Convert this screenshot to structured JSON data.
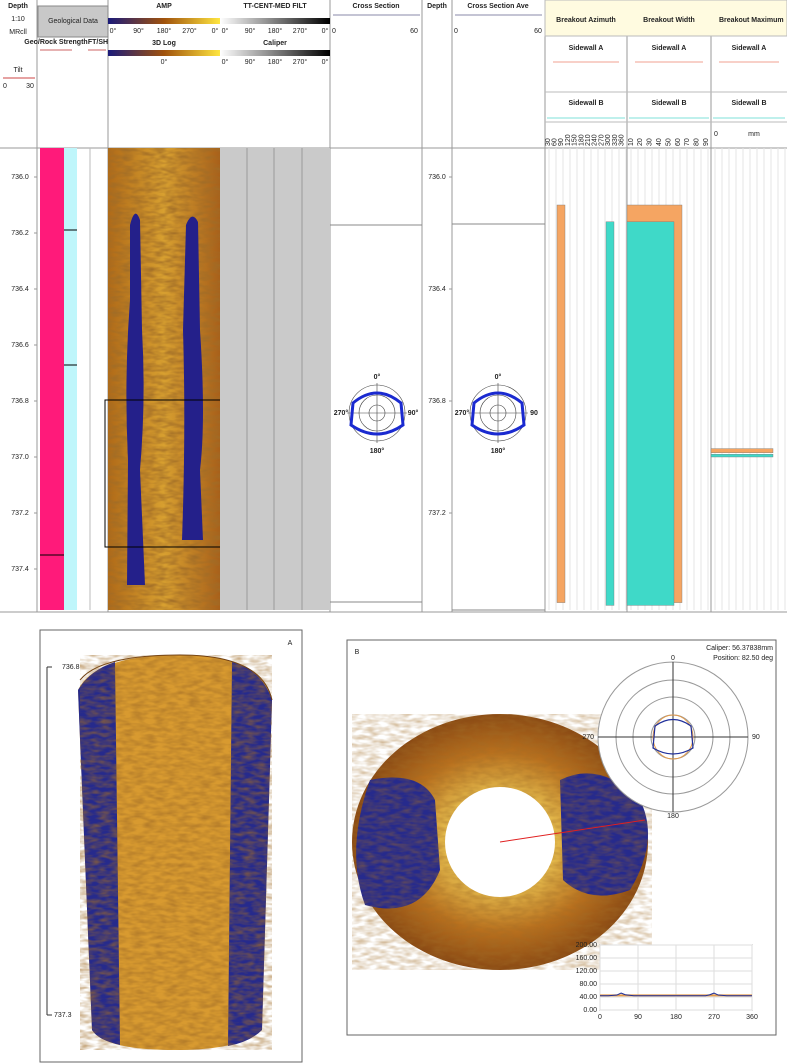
{
  "header": {
    "depth": {
      "title": "Depth",
      "scale": "1:10",
      "reference": "MRcll",
      "tilt": "Tilt",
      "tilt_range": [
        0,
        30
      ]
    },
    "geological_data": {
      "title": "Geological Data",
      "columns": [
        "Geo/Rock Strength",
        "FT/SH"
      ]
    },
    "amp": {
      "title": "AMP",
      "scale": [
        "0°",
        "90°",
        "180°",
        "270°",
        "0°"
      ]
    },
    "tt_cent_med_filt": {
      "title": "TT-CENT-MED FILT",
      "scale": [
        "0°",
        "90°",
        "180°",
        "270°",
        "0°"
      ]
    },
    "log_3d": {
      "title": "3D Log",
      "scale": [
        "0°"
      ]
    },
    "caliper": {
      "title": "Caliper",
      "scale": [
        "0°",
        "90°",
        "180°",
        "270°",
        "0°"
      ]
    },
    "cross_section": {
      "title": "Cross Section",
      "range": [
        0,
        60
      ]
    },
    "depth_2": {
      "title": "Depth"
    },
    "cross_section_ave": {
      "title": "Cross Section Ave",
      "range": [
        0,
        60
      ]
    },
    "breakout_azimuth": {
      "title": "Breakout Azimuth",
      "rows": [
        "Sidewall A",
        "Sidewall B"
      ],
      "ticks": [
        30,
        60,
        90,
        120,
        150,
        180,
        210,
        240,
        270,
        300,
        330,
        360
      ]
    },
    "breakout_width": {
      "title": "Breakout Width",
      "rows": [
        "Sidewall A",
        "Sidewall B"
      ],
      "ticks": [
        10,
        20,
        30,
        40,
        50,
        60,
        70,
        80,
        90
      ]
    },
    "breakout_maximum": {
      "title": "Breakout Maximum",
      "rows": [
        "Sidewall A",
        "Sidewall B"
      ],
      "range_start": 0,
      "unit": "mm"
    }
  },
  "log": {
    "depth_ticks": [
      {
        "value": 736,
        "label": "736.0"
      },
      736.2,
      736.4,
      736.6,
      736.8,
      {
        "value": 737,
        "label": "737.0"
      },
      737.2,
      737.4
    ],
    "depth_2_ticks": [
      {
        "value": 736,
        "label": "736.0"
      },
      736.4,
      736.8,
      737.2
    ],
    "cross_section_labels": [
      "0°",
      "90°",
      "180°",
      "270°"
    ],
    "cross_section_ave_labels": [
      "0°",
      "90",
      "180°",
      "270°"
    ],
    "breakout_azimuth": {
      "sidewall_a": {
        "color": "#f5a562",
        "depths": [
          736.1,
          737.52
        ]
      },
      "sidewall_b": {
        "color": "#3fd9c8",
        "depths": [
          736.16,
          737.53
        ]
      }
    },
    "breakout_width": {
      "sidewall_a": {
        "color": "#f5a562",
        "depths": [
          736.1,
          737.52
        ]
      },
      "sidewall_b": {
        "color": "#3fd9c8",
        "depths": [
          736.16,
          737.53
        ]
      }
    },
    "breakout_maximum": {
      "sidewall_a": {
        "color": "#f5a562",
        "depths": [
          736.97,
          736.985
        ]
      },
      "sidewall_b": {
        "color": "#3fd9c8",
        "depths": [
          736.99,
          737.0
        ]
      }
    }
  },
  "panel_a": {
    "label": "A",
    "depth_top": 736.8,
    "depth_bottom": 737.3
  },
  "panel_b": {
    "label": "B",
    "caliper": "Caliper: 56.37838mm",
    "position": "Position: 82.50 deg",
    "polar_labels": [
      0,
      90,
      180,
      270
    ],
    "profile": {
      "xlim": [
        0,
        360
      ],
      "ylim": [
        0,
        200
      ],
      "xticks": [
        0,
        90,
        180,
        270,
        360
      ],
      "yticks": [
        {
          "value": 0,
          "label": "0.00"
        },
        {
          "value": 40,
          "label": "40.00"
        },
        {
          "value": 80,
          "label": "80.00"
        },
        {
          "value": 120,
          "label": "120.00"
        },
        {
          "value": 160,
          "label": "160.00"
        },
        {
          "value": 200,
          "label": "200.00"
        }
      ],
      "series": [
        {
          "color": "#e39a4a",
          "x": [
            0,
            360
          ],
          "values": [
            45,
            45
          ]
        },
        {
          "color": "#1f2f9a",
          "x": [
            0,
            20,
            40,
            50,
            60,
            80,
            100,
            180,
            250,
            260,
            270,
            280,
            300,
            360
          ],
          "values": [
            44,
            44,
            46,
            52,
            47,
            44,
            44,
            44,
            44,
            47,
            52,
            46,
            44,
            44
          ]
        }
      ]
    }
  }
}
